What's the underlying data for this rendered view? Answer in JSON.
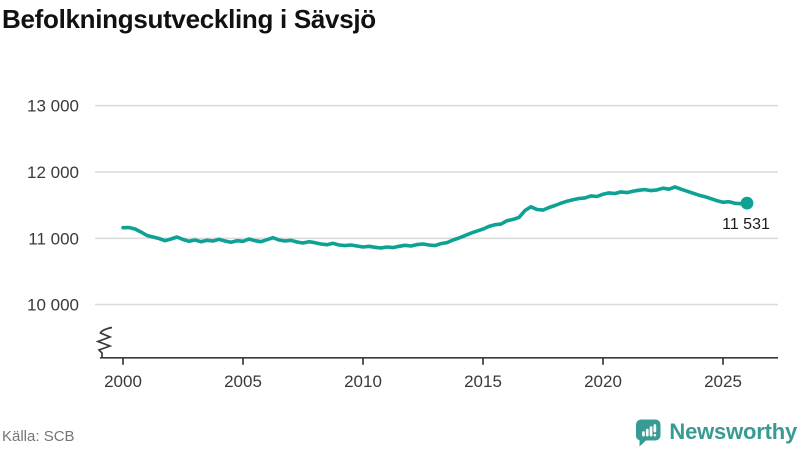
{
  "title": "Befolkningsutveckling i Sävsjö",
  "source": {
    "text": "Källa: SCB"
  },
  "branding": {
    "name": "Newsworthy",
    "icon": "bar-chart-speech-bubble"
  },
  "colors": {
    "accent": "#0DA294",
    "logo_teal": "#379B94",
    "grid": "#DCDCDC",
    "axis": "#3A3A3A",
    "tick_text": "#3A3A3A",
    "title_text": "#111111",
    "source_text": "#757575",
    "end_label_text": "#1B1B1B",
    "background": "#FFFFFF"
  },
  "chart_data": {
    "type": "line",
    "title": "Befolkningsutveckling i Sävsjö",
    "xlabel": "",
    "ylabel": "",
    "x_unit": "year",
    "x_start": 2000,
    "x_step": 0.25,
    "x_ticks": [
      2000,
      2005,
      2010,
      2015,
      2020,
      2025
    ],
    "y_ticks": [
      {
        "value": 10000,
        "label": "10 000"
      },
      {
        "value": 11000,
        "label": "11 000"
      },
      {
        "value": 12000,
        "label": "12 000"
      },
      {
        "value": 13000,
        "label": "13 000"
      }
    ],
    "ylim_displayed": [
      10000,
      13000
    ],
    "axis_break": true,
    "grid": "horizontal",
    "legend": "none",
    "line_color": "#0DA294",
    "end_point_marker": true,
    "last_point_label": "11 531",
    "last_point_value": 11531,
    "values": [
      11160,
      11163,
      11140,
      11095,
      11042,
      11019,
      10997,
      10964,
      10989,
      11020,
      10982,
      10955,
      10974,
      10949,
      10970,
      10959,
      10985,
      10959,
      10939,
      10964,
      10955,
      10989,
      10964,
      10949,
      10979,
      11009,
      10974,
      10959,
      10970,
      10944,
      10929,
      10949,
      10934,
      10914,
      10904,
      10925,
      10899,
      10890,
      10899,
      10884,
      10869,
      10879,
      10864,
      10854,
      10869,
      10860,
      10879,
      10894,
      10884,
      10905,
      10914,
      10899,
      10890,
      10920,
      10935,
      10974,
      11005,
      11040,
      11079,
      11109,
      11139,
      11180,
      11205,
      11214,
      11265,
      11285,
      11315,
      11420,
      11475,
      11435,
      11425,
      11465,
      11495,
      11530,
      11560,
      11580,
      11600,
      11610,
      11640,
      11630,
      11665,
      11685,
      11675,
      11700,
      11690,
      11710,
      11725,
      11735,
      11720,
      11730,
      11755,
      11740,
      11775,
      11740,
      11710,
      11680,
      11650,
      11627,
      11597,
      11567,
      11543,
      11552,
      11528,
      11522,
      11531
    ]
  }
}
